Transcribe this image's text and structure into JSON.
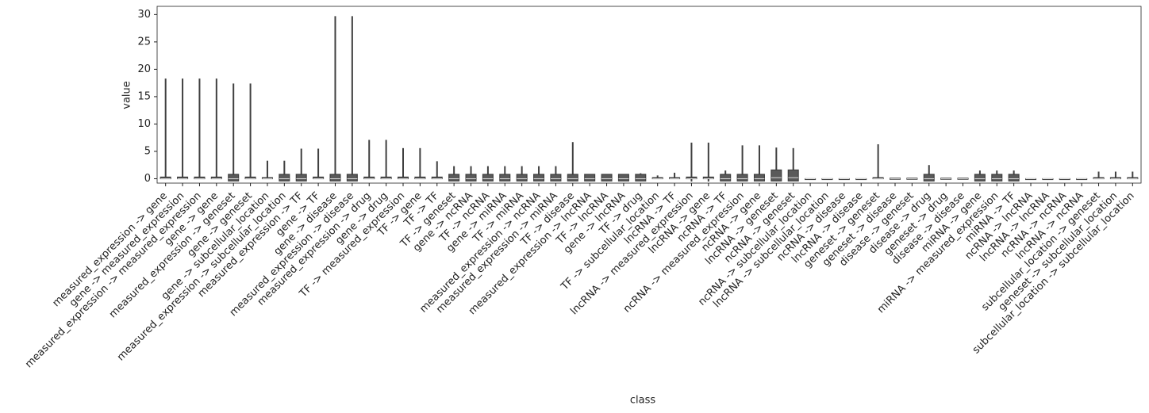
{
  "chart_data": {
    "type": "box",
    "xlabel": "class",
    "ylabel": "value",
    "categories": [
      "measured_expression -> gene",
      "gene -> measured_expression",
      "measured_expression -> measured_expression",
      "gene -> gene",
      "measured_expression -> geneset",
      "gene -> geneset",
      "gene -> subcellular_location",
      "measured_expression -> subcellular_location",
      "measured_expression -> TF",
      "gene -> TF",
      "gene -> disease",
      "measured_expression -> disease",
      "measured_expression -> drug",
      "gene -> drug",
      "TF -> measured_expression",
      "TF -> gene",
      "TF -> TF",
      "TF -> geneset",
      "gene -> ncRNA",
      "TF -> ncRNA",
      "gene -> miRNA",
      "TF -> miRNA",
      "measured_expression -> ncRNA",
      "measured_expression -> miRNA",
      "TF -> disease",
      "measured_expression -> lncRNA",
      "TF -> lncRNA",
      "gene -> lncRNA",
      "TF -> drug",
      "TF -> subcellular_location",
      "lncRNA -> TF",
      "lncRNA -> measured_expression",
      "lncRNA -> gene",
      "ncRNA -> TF",
      "ncRNA -> measured_expression",
      "ncRNA -> gene",
      "lncRNA -> geneset",
      "ncRNA -> geneset",
      "ncRNA -> subcellular_location",
      "lncRNA -> subcellular_location",
      "ncRNA -> disease",
      "lncRNA -> disease",
      "geneset -> geneset",
      "geneset -> disease",
      "disease -> geneset",
      "disease -> drug",
      "geneset -> drug",
      "disease -> disease",
      "miRNA -> gene",
      "miRNA -> measured_expression",
      "miRNA -> TF",
      "ncRNA -> lncRNA",
      "lncRNA -> lncRNA",
      "ncRNA -> ncRNA",
      "lncRNA -> ncRNA",
      "subcellular_location -> geneset",
      "geneset -> subcellular_location",
      "subcellular_location -> subcellular_location"
    ],
    "min": [
      0,
      0,
      0,
      0,
      -0.4,
      0,
      0,
      -0.4,
      -0.4,
      0,
      -0.4,
      -0.4,
      0,
      0,
      0,
      0,
      0,
      -0.4,
      -0.4,
      -0.4,
      -0.4,
      -0.4,
      -0.4,
      -0.4,
      -0.4,
      -0.4,
      -0.4,
      -0.4,
      -0.4,
      0,
      0,
      -0.5,
      -0.5,
      -0.4,
      -0.4,
      -0.4,
      -0.4,
      -0.4,
      0,
      0,
      0,
      0,
      0,
      -0.1,
      -0.1,
      -0.4,
      -0.1,
      -0.1,
      -0.4,
      -0.4,
      -0.4,
      0,
      0,
      0,
      0,
      0,
      0,
      0
    ],
    "q1": [
      0,
      0,
      0,
      0,
      -0.4,
      0,
      0,
      -0.4,
      -0.4,
      0,
      -0.4,
      -0.4,
      0,
      0,
      0,
      0,
      0,
      -0.4,
      -0.4,
      -0.4,
      -0.4,
      -0.4,
      -0.4,
      -0.4,
      -0.4,
      -0.4,
      -0.4,
      -0.4,
      -0.4,
      0,
      0,
      0,
      0,
      -0.4,
      -0.4,
      -0.4,
      -0.4,
      -0.4,
      0,
      0,
      0,
      0,
      0,
      -0.1,
      -0.1,
      -0.4,
      -0.1,
      -0.1,
      -0.4,
      -0.4,
      -0.4,
      0,
      0,
      0,
      0,
      0,
      0,
      0
    ],
    "median": [
      0,
      0,
      0,
      0,
      0,
      0,
      0,
      0,
      0,
      0,
      0,
      0,
      0,
      0,
      0,
      0,
      0,
      0,
      0,
      0,
      0,
      0,
      0,
      0,
      0,
      0,
      0,
      0,
      0,
      0,
      0,
      0,
      0,
      0,
      0,
      0,
      0.2,
      0.2,
      0,
      0,
      0,
      0,
      0,
      0,
      0,
      0,
      0,
      0,
      0,
      0,
      0,
      0,
      0,
      0,
      0,
      0,
      0,
      0
    ],
    "q3": [
      0.3,
      0.3,
      0.3,
      0.3,
      0.8,
      0.3,
      0.2,
      0.8,
      0.8,
      0.3,
      0.8,
      0.8,
      0.3,
      0.3,
      0.3,
      0.3,
      0.3,
      0.8,
      0.8,
      0.8,
      0.8,
      0.8,
      0.8,
      0.8,
      0.8,
      0.8,
      0.8,
      0.8,
      0.8,
      0.2,
      0.2,
      0.3,
      0.3,
      0.8,
      0.8,
      0.8,
      1.6,
      1.6,
      0,
      0,
      0,
      0,
      0.2,
      0.1,
      0.1,
      0.8,
      0.1,
      0.1,
      0.8,
      0.8,
      0.8,
      0,
      0,
      0,
      0,
      0.2,
      0.2,
      0.2
    ],
    "max": [
      18.3,
      18.3,
      18.3,
      18.3,
      17.4,
      17.4,
      3.3,
      3.3,
      5.5,
      5.5,
      29.7,
      29.7,
      7.1,
      7.1,
      5.6,
      5.6,
      3.2,
      2.3,
      2.3,
      2.3,
      2.3,
      2.3,
      2.3,
      2.3,
      6.7,
      0.8,
      0.8,
      0.8,
      1.0,
      0.6,
      1.1,
      6.6,
      6.6,
      1.5,
      6.1,
      6.1,
      5.7,
      5.6,
      0,
      0,
      0,
      0,
      6.3,
      0.1,
      0.1,
      2.5,
      0.1,
      0.1,
      1.5,
      1.5,
      1.5,
      0,
      0,
      0,
      0,
      1.3,
      1.3,
      1.3
    ],
    "color": "#5a5a5a",
    "line_color": "#3f3f3f",
    "ylim": [
      -0.8,
      31.5
    ],
    "yticks": [
      0,
      5,
      10,
      15,
      20,
      25,
      30
    ]
  }
}
